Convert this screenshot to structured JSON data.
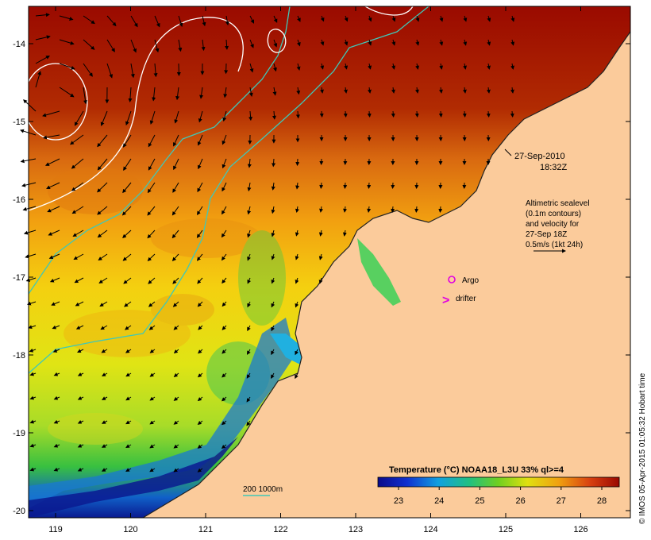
{
  "map": {
    "timestamp_date": "27-Sep-2010",
    "timestamp_time": "18:32Z",
    "info_lines": [
      "Altimetric sealevel",
      "(0.1m contours)",
      "and velocity for",
      "27-Sep 18Z",
      "0.5m/s (1kt 24h)"
    ],
    "argo_label": "Argo",
    "drifter_label": "drifter",
    "drifter_symbol": ">",
    "isobath_label": "200  1000m",
    "credit": "© IMOS 05-Apr-2015 01:05:32 Hobart time",
    "colorbar": {
      "title": "Temperature (°C) NOAA18_L3U 33% ql>=4",
      "ticks": [
        "23",
        "24",
        "25",
        "26",
        "27",
        "28"
      ]
    },
    "lon_ticks": [
      "119",
      "120",
      "121",
      "122",
      "123",
      "124",
      "125",
      "126"
    ],
    "lat_ticks": [
      "-14",
      "-15",
      "-16",
      "-17",
      "-18",
      "-19",
      "-20"
    ],
    "colors": {
      "land": "#fbcb9b",
      "isobath": "#3fc8b8",
      "argo": "#e000e0",
      "contour": "#ffffff",
      "arrow": "#000000"
    }
  }
}
